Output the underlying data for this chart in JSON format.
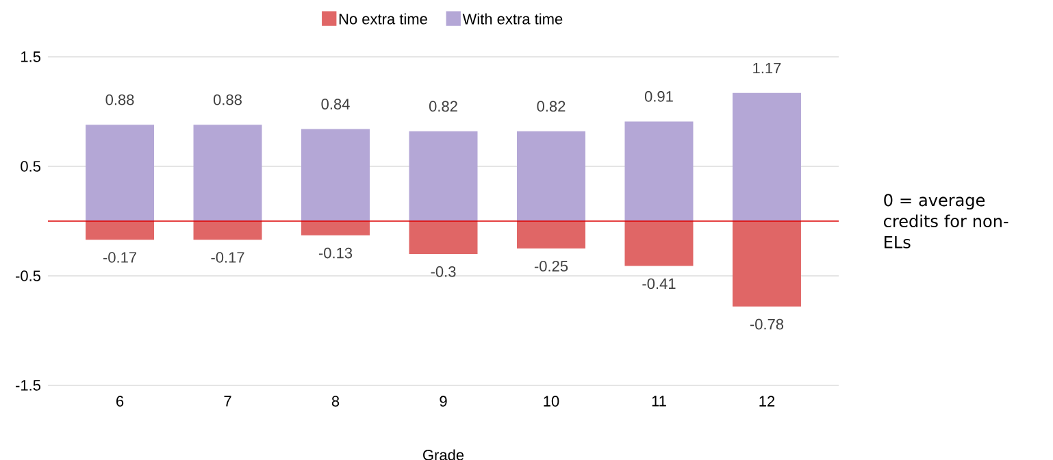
{
  "chart_data": {
    "type": "bar",
    "stacked": true,
    "categories": [
      "6",
      "7",
      "8",
      "9",
      "10",
      "11",
      "12"
    ],
    "xlabel": "Grade",
    "ylim": [
      -1.5,
      1.5
    ],
    "yticks": [
      -1.5,
      -0.5,
      0.5,
      1.5
    ],
    "grid": "y",
    "legend": "top",
    "series": [
      {
        "name": "No extra time",
        "color": "#e06666",
        "values": [
          -0.17,
          -0.17,
          -0.13,
          -0.3,
          -0.25,
          -0.41,
          -0.78
        ],
        "value_labels": [
          "-0.17",
          "-0.17",
          "-0.13",
          "-0.3",
          "-0.25",
          "-0.41",
          "-0.78"
        ]
      },
      {
        "name": "With extra time",
        "color": "#b4a7d6",
        "values": [
          0.88,
          0.88,
          0.84,
          0.82,
          0.82,
          0.91,
          1.17
        ],
        "value_labels": [
          "0.88",
          "0.88",
          "0.84",
          "0.82",
          "0.82",
          "0.91",
          "1.17"
        ]
      }
    ],
    "ref_lines": [
      {
        "axis": "y",
        "value": 0,
        "label": "0 = average credits for non-ELs",
        "color": "#dd0000"
      }
    ]
  }
}
